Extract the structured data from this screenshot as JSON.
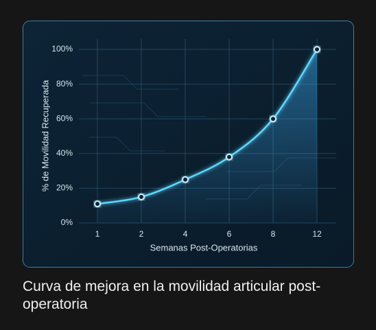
{
  "chart_data": {
    "type": "line",
    "title": "Curva de mejora en la movilidad articular post-operatoria",
    "x_label": "Semanas Post-Operatorias",
    "y_label": "% de Movilidad Recuperada",
    "categories": [
      "1",
      "2",
      "4",
      "6",
      "8",
      "12"
    ],
    "values": [
      11,
      15,
      25,
      38,
      60,
      100
    ],
    "color": "#5fd8ff",
    "ylim": [
      0,
      100
    ],
    "yticks": [
      {
        "value": 0,
        "label": "0%"
      },
      {
        "value": 20,
        "label": "20%"
      },
      {
        "value": 40,
        "label": "40%"
      },
      {
        "value": 60,
        "label": "60%"
      },
      {
        "value": 80,
        "label": "80%"
      },
      {
        "value": 100,
        "label": "100%"
      }
    ],
    "grid": true
  }
}
